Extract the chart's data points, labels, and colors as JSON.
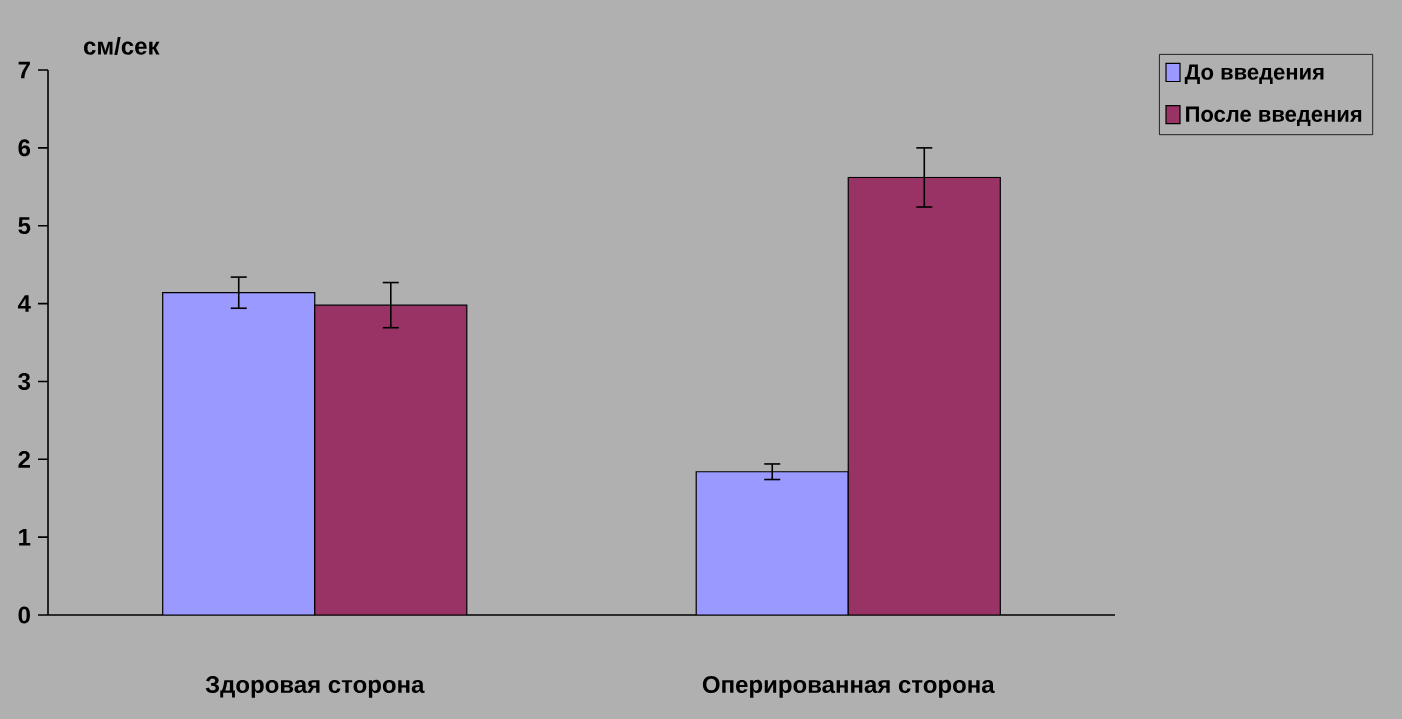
{
  "chart_data": {
    "type": "bar",
    "ylabel": "см/сек",
    "categories": [
      "Здоровая сторона",
      "Оперированная сторона"
    ],
    "series": [
      {
        "name": "До введения",
        "color": "#9999ff",
        "values": [
          4.14,
          1.84
        ],
        "errors": [
          0.2,
          0.1
        ]
      },
      {
        "name": "После введения",
        "color": "#993366",
        "values": [
          3.98,
          5.62
        ],
        "errors": [
          0.29,
          0.38
        ]
      }
    ],
    "ylim": [
      0,
      7
    ],
    "yticks": [
      0,
      1,
      2,
      3,
      4,
      5,
      6,
      7
    ],
    "legend": "top right"
  }
}
